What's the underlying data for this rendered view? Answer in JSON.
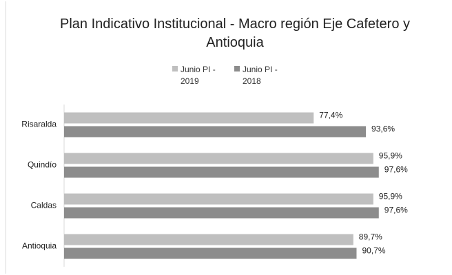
{
  "chart_data": {
    "type": "barh",
    "title": "Plan Indicativo Institucional - Macro región Eje Cafetero y Antioquia",
    "categories": [
      "Risaralda",
      "Quindío",
      "Caldas",
      "Antioquia"
    ],
    "series": [
      {
        "name": "Junio PI - 2019",
        "color": "#bfbfbf",
        "values": [
          77.4,
          95.9,
          95.9,
          89.7
        ],
        "value_labels": [
          "77,4%",
          "95,9%",
          "95,9%",
          "89,7%"
        ]
      },
      {
        "name": "Junio PI - 2018",
        "color": "#8c8c8c",
        "values": [
          93.6,
          97.6,
          97.6,
          90.7
        ],
        "value_labels": [
          "93,6%",
          "97,6%",
          "97,6%",
          "90,7%"
        ]
      }
    ],
    "xlim": [
      0,
      100
    ],
    "legend": "top"
  }
}
